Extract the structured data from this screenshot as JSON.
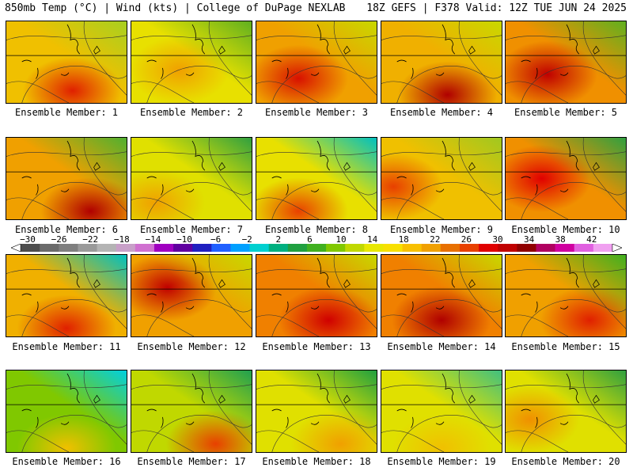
{
  "header": {
    "left": "850mb Temp (°C) | Wind (kts) | College of DuPage NEXLAB",
    "right": "18Z GEFS | F378 Valid: 12Z TUE JUN 24 2025"
  },
  "colorbar": {
    "labels": [
      "−30",
      "−26",
      "−22",
      "−18",
      "−14",
      "−10",
      "−6",
      "−2",
      "2",
      "6",
      "10",
      "14",
      "18",
      "22",
      "26",
      "30",
      "34",
      "38",
      "42"
    ],
    "colors": [
      "#4d4d4d",
      "#6b6b6b",
      "#7f7f7f",
      "#9a9a9a",
      "#b4b4b4",
      "#c8a0c8",
      "#d070d0",
      "#a000c0",
      "#6000a0",
      "#2020c0",
      "#2060ff",
      "#00a0ff",
      "#00d0d0",
      "#00b080",
      "#20a040",
      "#40b020",
      "#80c800",
      "#c0d800",
      "#e8e800",
      "#f8e000",
      "#f8c000",
      "#f0a000",
      "#e87000",
      "#e84000",
      "#e00000",
      "#c00000",
      "#900000",
      "#b00060",
      "#d000a0",
      "#e060e0",
      "#f0a0f0"
    ]
  },
  "members": [
    {
      "label": "Ensemble Member: 1",
      "base": "#f0c000",
      "hot": "#e02000",
      "cool": "#a8d020",
      "hx": 0.55,
      "hy": 0.85
    },
    {
      "label": "Ensemble Member: 2",
      "base": "#e8e000",
      "hot": "#f0a000",
      "cool": "#60b020",
      "hx": 0.4,
      "hy": 0.6
    },
    {
      "label": "Ensemble Member: 3",
      "base": "#f0a000",
      "hot": "#d81000",
      "cool": "#c8d800",
      "hx": 0.35,
      "hy": 0.7
    },
    {
      "label": "Ensemble Member: 4",
      "base": "#f0b000",
      "hot": "#b00000",
      "cool": "#c8d800",
      "hx": 0.55,
      "hy": 0.9
    },
    {
      "label": "Ensemble Member: 5",
      "base": "#f09000",
      "hot": "#c00000",
      "cool": "#60b020",
      "hx": 0.35,
      "hy": 0.65
    },
    {
      "label": "Ensemble Member: 6",
      "base": "#f0a000",
      "hot": "#b00000",
      "cool": "#50b030",
      "hx": 0.7,
      "hy": 0.9
    },
    {
      "label": "Ensemble Member: 7",
      "base": "#e0e000",
      "hot": "#f0a000",
      "cool": "#30a040",
      "hx": 0.2,
      "hy": 0.8
    },
    {
      "label": "Ensemble Member: 8",
      "base": "#e8e000",
      "hot": "#e84000",
      "cool": "#00c0c0",
      "hx": 0.35,
      "hy": 0.9
    },
    {
      "label": "Ensemble Member: 9",
      "base": "#f0c000",
      "hot": "#e84000",
      "cool": "#a0c820",
      "hx": 0.1,
      "hy": 0.6
    },
    {
      "label": "Ensemble Member: 10",
      "base": "#f09000",
      "hot": "#e00000",
      "cool": "#30a040",
      "hx": 0.3,
      "hy": 0.5
    },
    {
      "label": "Ensemble Member: 11",
      "base": "#f0b000",
      "hot": "#e02000",
      "cool": "#00c0c0",
      "hx": 0.5,
      "hy": 0.9
    },
    {
      "label": "Ensemble Member: 12",
      "base": "#f0a000",
      "hot": "#c00000",
      "cool": "#c8d800",
      "hx": 0.3,
      "hy": 0.4
    },
    {
      "label": "Ensemble Member: 13",
      "base": "#f08000",
      "hot": "#d00000",
      "cool": "#c8d800",
      "hx": 0.6,
      "hy": 0.8
    },
    {
      "label": "Ensemble Member: 14",
      "base": "#f08000",
      "hot": "#b00000",
      "cool": "#c8d800",
      "hx": 0.5,
      "hy": 0.8
    },
    {
      "label": "Ensemble Member: 15",
      "base": "#f0a000",
      "hot": "#e02000",
      "cool": "#40b020",
      "hx": 0.7,
      "hy": 0.8
    },
    {
      "label": "Ensemble Member: 16",
      "base": "#80c800",
      "hot": "#f0c000",
      "cool": "#00d0e0",
      "hx": 0.5,
      "hy": 0.95
    },
    {
      "label": "Ensemble Member: 17",
      "base": "#c0d800",
      "hot": "#e84000",
      "cool": "#20a050",
      "hx": 0.7,
      "hy": 0.9
    },
    {
      "label": "Ensemble Member: 18",
      "base": "#e0e000",
      "hot": "#f0a000",
      "cool": "#20a040",
      "hx": 0.7,
      "hy": 0.9
    },
    {
      "label": "Ensemble Member: 19",
      "base": "#e0e000",
      "hot": "#f0c000",
      "cool": "#40c080",
      "hx": 0.5,
      "hy": 0.95
    },
    {
      "label": "Ensemble Member: 20",
      "base": "#e0e000",
      "hot": "#f09000",
      "cool": "#30a040",
      "hx": 0.2,
      "hy": 0.6
    }
  ]
}
